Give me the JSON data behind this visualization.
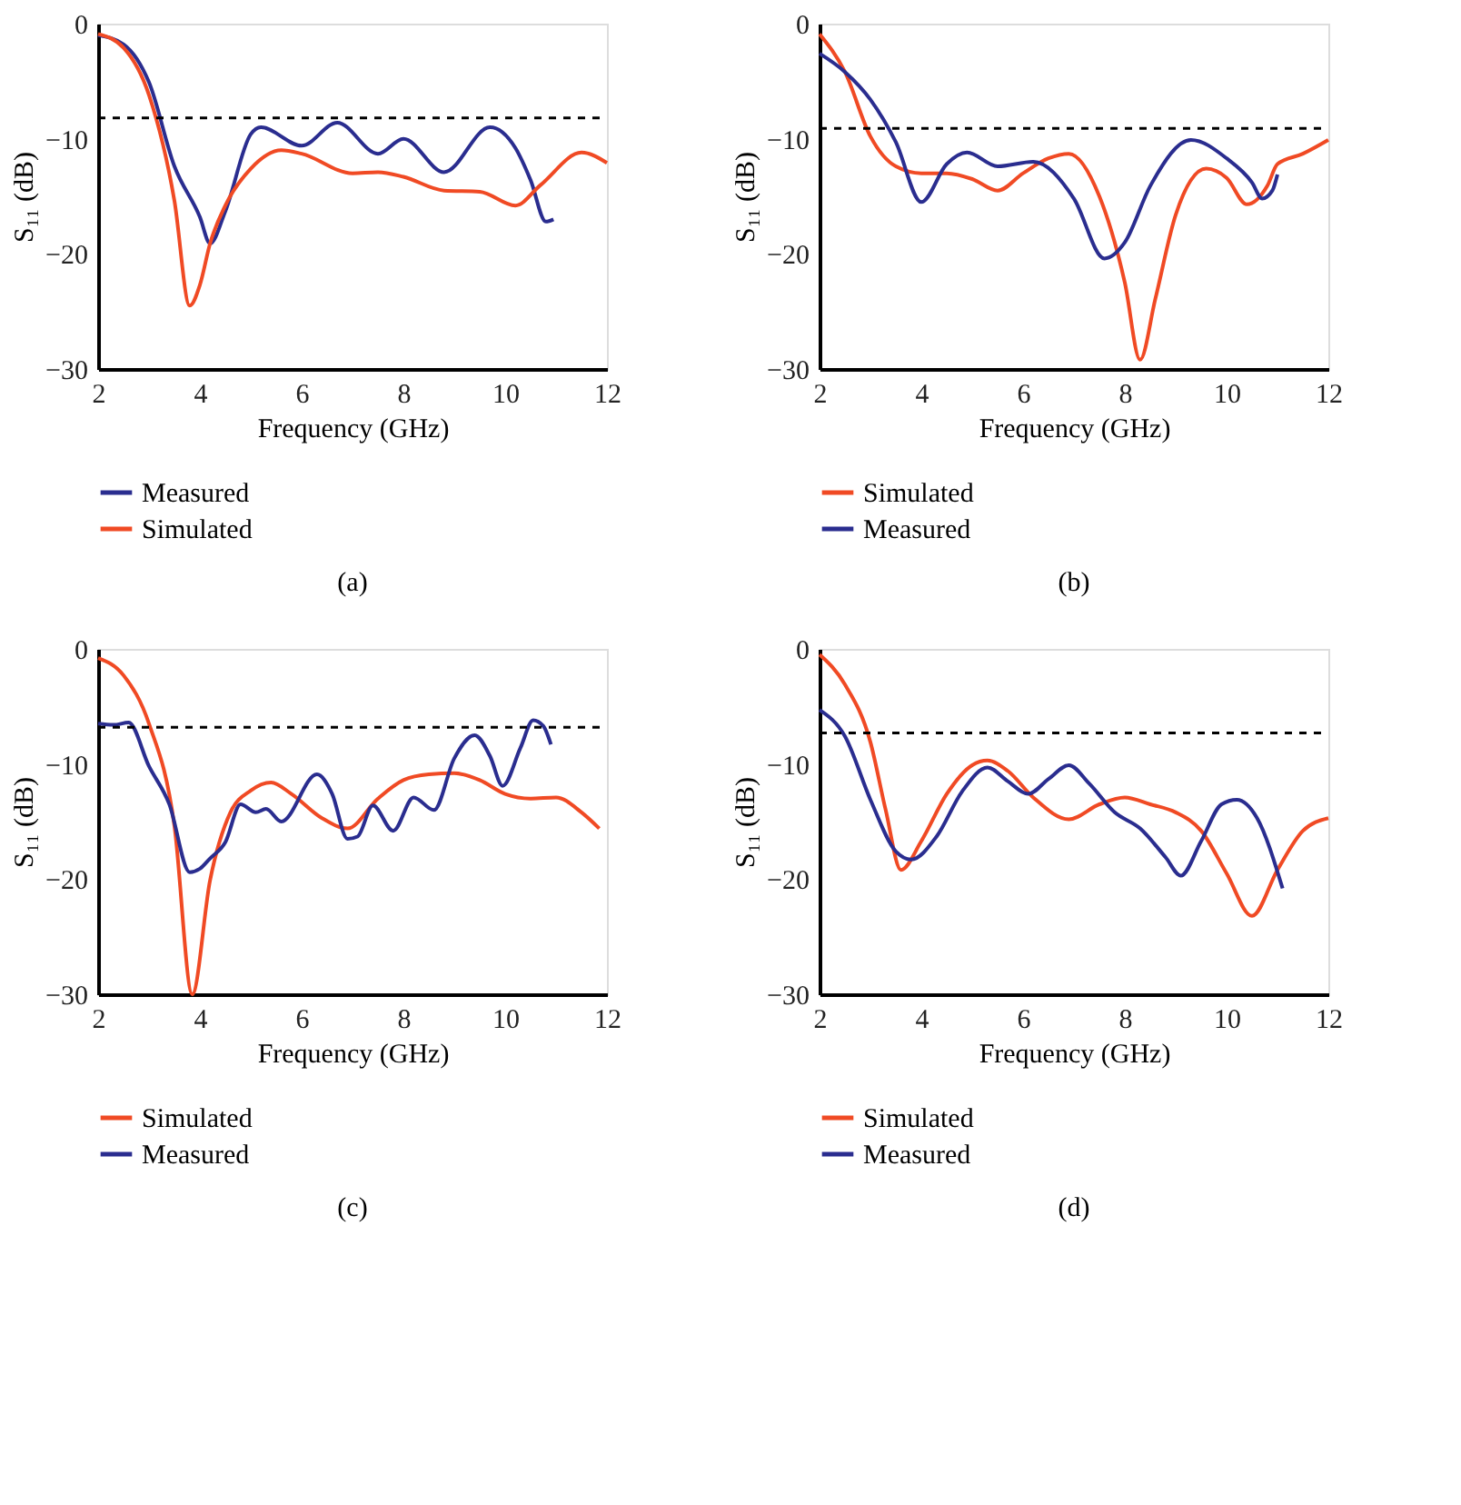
{
  "chart_data": [
    {
      "type": "line",
      "xlabel": "Frequency (GHz)",
      "ylabel": "S₁₁ (dB)",
      "xlim": [
        2,
        12
      ],
      "xticks": [
        2,
        4,
        6,
        8,
        10,
        12
      ],
      "ylim": [
        -30,
        0
      ],
      "yticks": [
        0,
        -10,
        -20,
        -30
      ],
      "grid": false,
      "legend": "bottom",
      "annotations": [
        "(a)"
      ],
      "ref_lines": [
        {
          "axis": "y",
          "value": -8.2,
          "color": "#000000",
          "line_style": "dashed"
        }
      ],
      "series": [
        {
          "name": "Measured",
          "color": "#2a2d8f",
          "x": [
            2,
            2.5,
            3,
            3.5,
            4,
            4.2,
            4.5,
            5,
            5.2,
            6,
            6.7,
            7.5,
            8,
            8.8,
            9.7,
            10.2,
            10.5,
            10.8,
            10.95
          ],
          "values": [
            -1.0,
            -1.8,
            -5.1,
            -12.4,
            -16.8,
            -19.1,
            -16.3,
            -9.6,
            -9.0,
            -10.6,
            -8.6,
            -11.3,
            -10.0,
            -12.9,
            -9.0,
            -10.8,
            -13.6,
            -17.2,
            -17.0
          ]
        },
        {
          "name": "Simulated",
          "color": "#f04a24",
          "x": [
            2,
            2.5,
            3,
            3.5,
            3.8,
            4,
            4.2,
            4.5,
            5,
            5.6,
            6,
            7,
            7.5,
            8,
            8.8,
            9.5,
            10.2,
            10.7,
            11.5,
            12
          ],
          "values": [
            -0.9,
            -2.1,
            -6.2,
            -15.4,
            -24.5,
            -22.7,
            -19.1,
            -15.8,
            -12.6,
            -11.0,
            -11.3,
            -13.0,
            -12.9,
            -13.3,
            -14.5,
            -14.6,
            -15.8,
            -14.0,
            -11.2,
            -12.1
          ]
        }
      ]
    },
    {
      "type": "line",
      "xlabel": "Frequency (GHz)",
      "ylabel": "S₁₁ (dB)",
      "xlim": [
        2,
        12
      ],
      "xticks": [
        2,
        4,
        6,
        8,
        10,
        12
      ],
      "ylim": [
        -30,
        0
      ],
      "yticks": [
        0,
        -10,
        -20,
        -30
      ],
      "grid": false,
      "legend": "bottom",
      "annotations": [
        "(b)"
      ],
      "ref_lines": [
        {
          "axis": "y",
          "value": -9.1,
          "color": "#000000",
          "line_style": "dashed"
        }
      ],
      "series": [
        {
          "name": "Simulated",
          "color": "#f04a24",
          "x": [
            2,
            2.5,
            3,
            3.5,
            4,
            4.5,
            5,
            5.5,
            6,
            6.5,
            6.9,
            7.5,
            8,
            8.3,
            8.6,
            9,
            9.6,
            10,
            10.4,
            10.8,
            11,
            11.5,
            12
          ],
          "values": [
            -0.9,
            -4.2,
            -9.8,
            -12.4,
            -13.0,
            -13.0,
            -13.5,
            -14.5,
            -13.0,
            -11.7,
            -11.3,
            -15.0,
            -22.5,
            -29.2,
            -23.9,
            -16.6,
            -12.6,
            -13.4,
            -15.7,
            -14.1,
            -12.2,
            -11.3,
            -10.1
          ]
        },
        {
          "name": "Measured",
          "color": "#2a2d8f",
          "x": [
            2,
            2.5,
            3,
            3.5,
            4,
            4.5,
            4.9,
            5.5,
            6.2,
            7,
            7.6,
            8,
            8.5,
            9.3,
            10,
            10.5,
            10.7,
            10.9,
            11
          ],
          "values": [
            -2.6,
            -4.2,
            -6.6,
            -10.3,
            -15.5,
            -12.2,
            -11.2,
            -12.4,
            -12.0,
            -15.2,
            -20.4,
            -19.0,
            -14.1,
            -10.1,
            -11.7,
            -13.8,
            -15.2,
            -14.5,
            -13.1
          ]
        }
      ]
    },
    {
      "type": "line",
      "xlabel": "Frequency (GHz)",
      "ylabel": "S₁₁ (dB)",
      "xlim": [
        2,
        12
      ],
      "xticks": [
        2,
        4,
        6,
        8,
        10,
        12
      ],
      "ylim": [
        -30,
        0
      ],
      "yticks": [
        0,
        -10,
        -20,
        -30
      ],
      "grid": false,
      "legend": "bottom",
      "annotations": [
        "(c)"
      ],
      "ref_lines": [
        {
          "axis": "y",
          "value": -6.8,
          "color": "#000000",
          "line_style": "dashed"
        }
      ],
      "series": [
        {
          "name": "Simulated",
          "color": "#f04a24",
          "x": [
            2,
            2.5,
            3,
            3.5,
            3.85,
            4.2,
            4.6,
            5,
            5.4,
            5.8,
            6.4,
            6.9,
            7.5,
            8,
            8.5,
            9,
            9.5,
            10,
            10.5,
            11,
            11.5,
            11.85
          ],
          "values": [
            -0.8,
            -2.3,
            -6.5,
            -15.4,
            -30,
            -20.1,
            -14.2,
            -12.3,
            -11.6,
            -12.6,
            -14.7,
            -15.6,
            -13.0,
            -11.4,
            -10.9,
            -10.8,
            -11.4,
            -12.6,
            -13.0,
            -12.9,
            -14.2,
            -15.6
          ]
        },
        {
          "name": "Measured",
          "color": "#2a2d8f",
          "x": [
            2,
            2.3,
            2.6,
            3,
            3.4,
            3.8,
            4,
            4.2,
            4.5,
            4.8,
            5.1,
            5.3,
            5.6,
            6.3,
            6.6,
            6.9,
            7.1,
            7.4,
            7.8,
            8.2,
            8.6,
            9,
            9.4,
            9.7,
            9.95,
            10.3,
            10.55,
            10.75,
            10.9
          ],
          "values": [
            -6.5,
            -6.6,
            -6.4,
            -10.2,
            -13.5,
            -19.4,
            -19.1,
            -18.2,
            -16.8,
            -13.5,
            -14.2,
            -13.9,
            -15.0,
            -10.9,
            -12.6,
            -16.5,
            -16.3,
            -13.6,
            -15.8,
            -12.9,
            -14.0,
            -9.5,
            -7.5,
            -9.3,
            -11.9,
            -8.6,
            -6.2,
            -6.7,
            -8.3
          ]
        }
      ]
    },
    {
      "type": "line",
      "xlabel": "Frequency (GHz)",
      "ylabel": "S₁₁ (dB)",
      "xlim": [
        2,
        12
      ],
      "xticks": [
        2,
        4,
        6,
        8,
        10,
        12
      ],
      "ylim": [
        -30,
        0
      ],
      "yticks": [
        0,
        -10,
        -20,
        -30
      ],
      "grid": false,
      "legend": "bottom",
      "annotations": [
        "(d)"
      ],
      "ref_lines": [
        {
          "axis": "y",
          "value": -7.3,
          "color": "#000000",
          "line_style": "dashed"
        }
      ],
      "series": [
        {
          "name": "Simulated",
          "color": "#f04a24",
          "x": [
            2,
            2.5,
            3,
            3.3,
            3.6,
            4,
            4.5,
            5,
            5.3,
            5.7,
            6.2,
            6.9,
            7.5,
            8,
            8.5,
            9,
            9.5,
            10,
            10.5,
            11,
            11.5,
            12
          ],
          "values": [
            -0.5,
            -3.1,
            -8.1,
            -14.0,
            -19.2,
            -16.7,
            -12.6,
            -10.1,
            -9.7,
            -10.6,
            -12.9,
            -14.8,
            -13.5,
            -12.9,
            -13.5,
            -14.2,
            -15.8,
            -19.5,
            -23.2,
            -19.2,
            -15.8,
            -14.7
          ]
        },
        {
          "name": "Measured",
          "color": "#2a2d8f",
          "x": [
            2,
            2.5,
            3,
            3.5,
            3.8,
            4.3,
            4.8,
            5.3,
            5.7,
            6.1,
            6.5,
            6.9,
            7.3,
            7.8,
            8.3,
            8.8,
            9.1,
            9.5,
            9.9,
            10.2,
            10.6,
            11.1
          ],
          "values": [
            -5.3,
            -7.6,
            -13.1,
            -17.6,
            -18.3,
            -16.3,
            -12.4,
            -10.3,
            -11.5,
            -12.6,
            -11.3,
            -10.1,
            -11.7,
            -14.2,
            -15.6,
            -18.1,
            -19.7,
            -16.7,
            -13.5,
            -13.1,
            -14.7,
            -20.8
          ]
        }
      ]
    }
  ]
}
